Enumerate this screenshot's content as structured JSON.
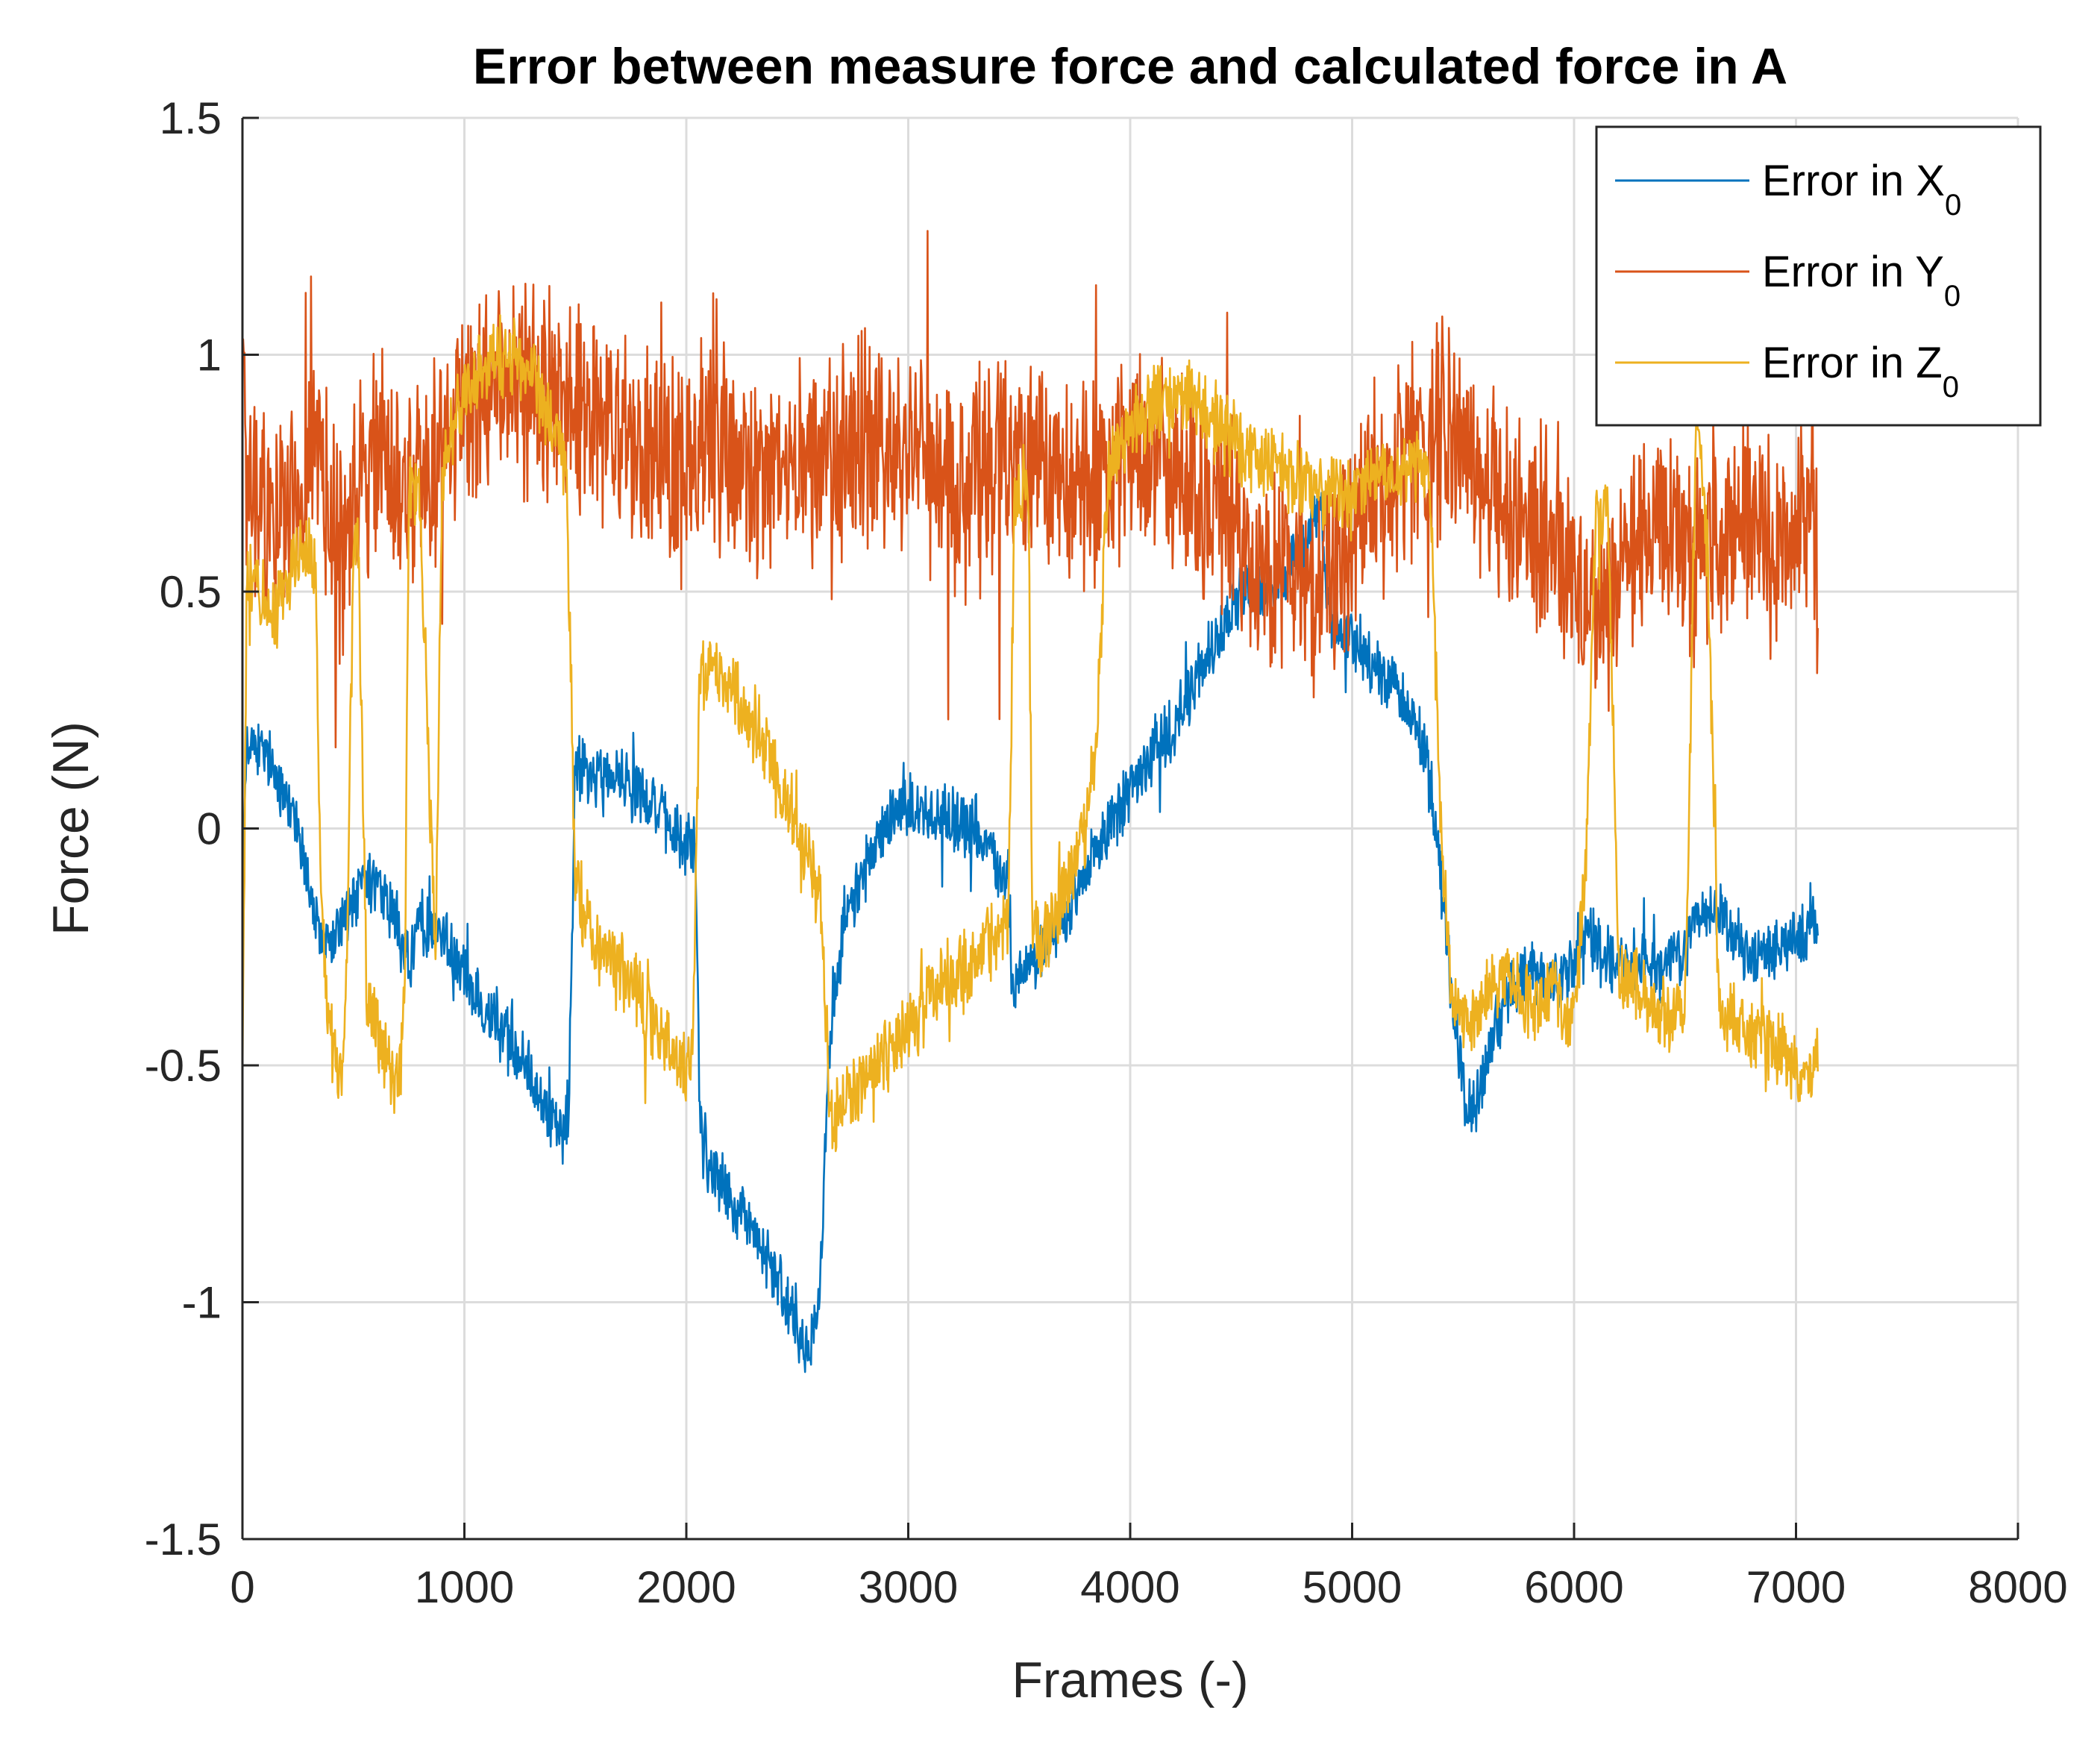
{
  "chart_data": {
    "type": "line",
    "title": "Error between measure force and calculated force in A",
    "xlabel": "Frames (-)",
    "ylabel": "Force (N)",
    "xlim": [
      0,
      8000
    ],
    "ylim": [
      -1.5,
      1.5
    ],
    "x_ticks": [
      0,
      1000,
      2000,
      3000,
      4000,
      5000,
      6000,
      7000,
      8000
    ],
    "y_ticks": [
      -1.5,
      -1,
      -0.5,
      0,
      0.5,
      1,
      1.5
    ],
    "x_tick_labels": [
      "0",
      "1000",
      "2000",
      "3000",
      "4000",
      "5000",
      "6000",
      "7000",
      "8000"
    ],
    "y_tick_labels": [
      "-1.5",
      "-1",
      "-0.5",
      "0",
      "0.5",
      "1",
      "1.5"
    ],
    "grid": true,
    "legend_position": "top-right",
    "series": [
      {
        "name": "Error in X0",
        "legend_main": "Error in X",
        "legend_sub": "0",
        "color": "#0072BD",
        "noise": 0.05,
        "x": [
          0,
          20,
          50,
          150,
          250,
          330,
          400,
          500,
          600,
          700,
          750,
          800,
          900,
          1000,
          1100,
          1200,
          1300,
          1400,
          1440,
          1470,
          1500,
          1550,
          1600,
          1700,
          1800,
          1900,
          2000,
          2040,
          2060,
          2100,
          2200,
          2300,
          2400,
          2500,
          2550,
          2600,
          2630,
          2660,
          2700,
          2800,
          2900,
          3000,
          3100,
          3200,
          3300,
          3400,
          3450,
          3470,
          3500,
          3600,
          3700,
          3800,
          3900,
          4000,
          4100,
          4200,
          4300,
          4400,
          4450,
          4500,
          4600,
          4700,
          4800,
          4850,
          4900,
          5000,
          5100,
          5200,
          5300,
          5350,
          5400,
          5450,
          5500,
          5550,
          5600,
          5700,
          5800,
          5900,
          6000,
          6050,
          6100,
          6200,
          6300,
          6400,
          6500,
          6550,
          6600,
          6700,
          6800,
          6900,
          7000,
          7050,
          7100
        ],
        "y": [
          -0.15,
          0.2,
          0.18,
          0.12,
          0.0,
          -0.2,
          -0.25,
          -0.15,
          -0.12,
          -0.2,
          -0.28,
          -0.2,
          -0.22,
          -0.3,
          -0.38,
          -0.45,
          -0.52,
          -0.62,
          -0.65,
          -0.6,
          0.15,
          0.12,
          0.1,
          0.12,
          0.08,
          0.02,
          -0.05,
          -0.02,
          -0.6,
          -0.7,
          -0.78,
          -0.85,
          -0.95,
          -1.05,
          -1.1,
          -1.0,
          -0.6,
          -0.35,
          -0.2,
          -0.1,
          0.02,
          0.05,
          0.03,
          0.02,
          0.0,
          -0.08,
          -0.1,
          -0.35,
          -0.3,
          -0.25,
          -0.2,
          -0.1,
          0.0,
          0.08,
          0.15,
          0.22,
          0.32,
          0.4,
          0.45,
          0.5,
          0.5,
          0.55,
          0.62,
          0.7,
          0.45,
          0.4,
          0.35,
          0.3,
          0.2,
          0.1,
          -0.1,
          -0.35,
          -0.55,
          -0.6,
          -0.5,
          -0.35,
          -0.3,
          -0.32,
          -0.3,
          -0.2,
          -0.25,
          -0.3,
          -0.28,
          -0.3,
          -0.25,
          -0.2,
          -0.15,
          -0.2,
          -0.28,
          -0.25,
          -0.24,
          -0.2,
          -0.2
        ]
      },
      {
        "name": "Error in Y0",
        "legend_main": "Error in Y",
        "legend_sub": "0",
        "color": "#D95319",
        "noise": 0.16,
        "x": [
          0,
          20,
          100,
          200,
          300,
          400,
          450,
          500,
          600,
          700,
          800,
          900,
          1000,
          1100,
          1200,
          1300,
          1400,
          1500,
          1600,
          1700,
          1800,
          1900,
          2000,
          2100,
          2200,
          2300,
          2400,
          2500,
          2600,
          2700,
          2800,
          2900,
          3000,
          3100,
          3200,
          3300,
          3400,
          3500,
          3600,
          3700,
          3800,
          3900,
          4000,
          4100,
          4200,
          4300,
          4400,
          4500,
          4600,
          4700,
          4800,
          4900,
          5000,
          5100,
          5200,
          5300,
          5400,
          5500,
          5600,
          5700,
          5800,
          5900,
          6000,
          6100,
          6200,
          6300,
          6400,
          6500,
          6600,
          6700,
          6800,
          6900,
          7000,
          7050,
          7100
        ],
        "y": [
          1.05,
          0.68,
          0.65,
          0.7,
          0.75,
          0.7,
          0.55,
          0.68,
          0.8,
          0.72,
          0.75,
          0.8,
          0.85,
          0.9,
          0.95,
          0.92,
          0.9,
          0.88,
          0.85,
          0.82,
          0.8,
          0.78,
          0.75,
          0.8,
          0.78,
          0.75,
          0.72,
          0.75,
          0.78,
          0.8,
          0.82,
          0.8,
          0.78,
          0.75,
          0.72,
          0.75,
          0.78,
          0.8,
          0.75,
          0.72,
          0.7,
          0.75,
          0.8,
          0.78,
          0.75,
          0.72,
          0.7,
          0.6,
          0.58,
          0.55,
          0.5,
          0.55,
          0.6,
          0.7,
          0.75,
          0.8,
          0.82,
          0.8,
          0.75,
          0.7,
          0.65,
          0.6,
          0.55,
          0.45,
          0.5,
          0.6,
          0.65,
          0.55,
          0.6,
          0.65,
          0.65,
          0.6,
          0.6,
          0.62,
          0.62
        ]
      },
      {
        "name": "Error in Z0",
        "legend_main": "Error in Z",
        "legend_sub": "0",
        "color": "#EDB120",
        "noise": 0.06,
        "x": [
          0,
          20,
          80,
          150,
          250,
          330,
          350,
          380,
          420,
          450,
          470,
          500,
          520,
          560,
          620,
          650,
          700,
          730,
          750,
          780,
          800,
          870,
          900,
          940,
          1000,
          1100,
          1200,
          1300,
          1400,
          1460,
          1500,
          1550,
          1600,
          1700,
          1800,
          1900,
          2000,
          2030,
          2060,
          2080,
          2100,
          2200,
          2300,
          2400,
          2500,
          2550,
          2600,
          2630,
          2650,
          2700,
          2800,
          2900,
          3000,
          3100,
          3200,
          3300,
          3400,
          3450,
          3480,
          3500,
          3540,
          3560,
          3600,
          3700,
          3800,
          3850,
          3900,
          4000,
          4100,
          4200,
          4300,
          4400,
          4500,
          4600,
          4700,
          4800,
          4900,
          5000,
          5100,
          5200,
          5300,
          5350,
          5400,
          5450,
          5500,
          5550,
          5600,
          5700,
          5800,
          5900,
          6000,
          6050,
          6100,
          6150,
          6200,
          6300,
          6400,
          6500,
          6550,
          6600,
          6650,
          6700,
          6800,
          6900,
          7000,
          7050,
          7100
        ],
        "y": [
          -0.55,
          0.55,
          0.5,
          0.45,
          0.6,
          0.55,
          -0.1,
          -0.4,
          -0.5,
          -0.55,
          -0.3,
          0.6,
          0.65,
          -0.35,
          -0.45,
          -0.5,
          -0.55,
          -0.4,
          0.7,
          0.72,
          0.7,
          -0.3,
          0.75,
          0.85,
          0.92,
          0.98,
          1.0,
          0.95,
          0.85,
          0.75,
          -0.1,
          -0.2,
          -0.25,
          -0.3,
          -0.38,
          -0.45,
          -0.5,
          -0.48,
          0.3,
          0.32,
          0.35,
          0.3,
          0.22,
          0.12,
          0.0,
          -0.05,
          -0.15,
          -0.4,
          -0.6,
          -0.6,
          -0.55,
          -0.48,
          -0.42,
          -0.35,
          -0.3,
          -0.28,
          -0.22,
          -0.2,
          0.7,
          0.72,
          0.75,
          -0.2,
          -0.25,
          -0.15,
          0.0,
          0.2,
          0.75,
          0.85,
          0.9,
          0.92,
          0.9,
          0.85,
          0.8,
          0.78,
          0.75,
          0.72,
          0.7,
          0.72,
          0.75,
          0.75,
          0.78,
          0.75,
          0.0,
          -0.35,
          -0.4,
          -0.4,
          -0.35,
          -0.3,
          -0.38,
          -0.35,
          -0.4,
          -0.1,
          0.65,
          0.7,
          -0.3,
          -0.35,
          -0.4,
          -0.38,
          0.85,
          0.6,
          -0.35,
          -0.4,
          -0.42,
          -0.45,
          -0.5,
          -0.55,
          -0.45
        ]
      }
    ]
  }
}
